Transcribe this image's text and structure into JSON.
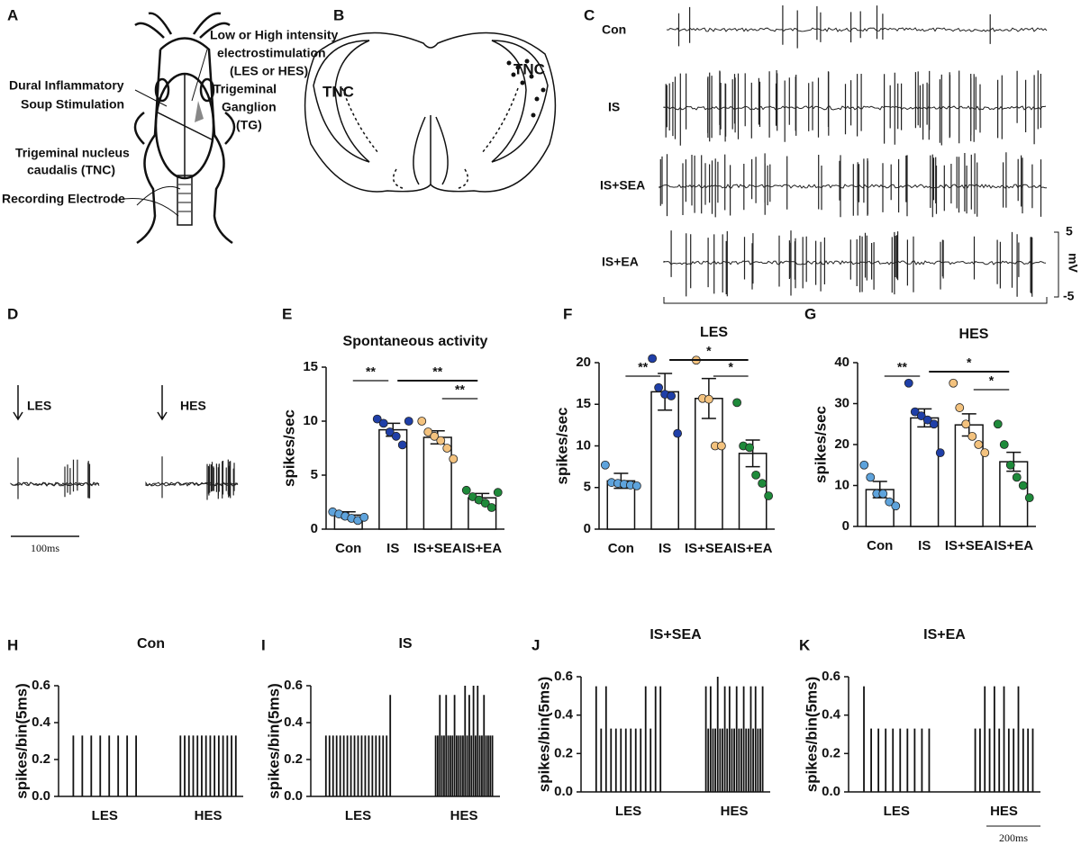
{
  "panels": {
    "A": {
      "letter": "A",
      "stimulation": [
        "Low or High intensity",
        "electrostimulation",
        "(LES or HES)"
      ],
      "dural": [
        "Dural Inflammatory",
        "Soup Stimulation"
      ],
      "ganglion": [
        "Trigeminal",
        "Ganglion",
        "(TG)"
      ],
      "tnc": [
        "Trigeminal nucleus",
        "caudalis (TNC)"
      ],
      "electrode": "Recording Electrode"
    },
    "B": {
      "letter": "B",
      "labels": [
        "TNC",
        "TNC"
      ]
    },
    "C": {
      "letter": "C",
      "traces": [
        "Con",
        "IS",
        "IS+SEA",
        "IS+EA"
      ],
      "scale": [
        "5",
        "mV",
        "-5"
      ]
    },
    "D": {
      "letter": "D",
      "labels": [
        "LES",
        "HES"
      ],
      "scale": "100ms"
    }
  },
  "chart_data": [
    {
      "type": "bar",
      "letter": "E",
      "title": "Spontaneous activity",
      "ylabel": "spikes/sec",
      "categories": [
        "Con",
        "IS",
        "IS+SEA",
        "IS+EA"
      ],
      "values": [
        1.3,
        9.2,
        8.5,
        2.9
      ],
      "errors": [
        0.3,
        0.6,
        0.6,
        0.4
      ],
      "colors": [
        "#5ea3dc",
        "#1f3fa8",
        "#f3c27e",
        "#1e8a3a"
      ],
      "points": [
        [
          1.6,
          1.4,
          1.2,
          1.0,
          0.8,
          1.1
        ],
        [
          10.2,
          9.8,
          9.0,
          8.6,
          7.8,
          10.0
        ],
        [
          10.0,
          9.0,
          8.6,
          8.2,
          7.5,
          6.5
        ],
        [
          3.6,
          3.0,
          2.7,
          2.4,
          2.0,
          3.4
        ]
      ],
      "ylim": [
        0,
        15
      ],
      "yticks": [
        0,
        5,
        10,
        15
      ],
      "significance": [
        {
          "between": [
            "Con",
            "IS"
          ],
          "label": "**"
        },
        {
          "between": [
            "IS",
            "IS+EA"
          ],
          "label": "**"
        },
        {
          "between": [
            "IS+SEA",
            "IS+EA"
          ],
          "label": "**"
        }
      ]
    },
    {
      "type": "bar",
      "letter": "F",
      "title": "LES",
      "ylabel": "spikes/sec",
      "categories": [
        "Con",
        "IS",
        "IS+SEA",
        "IS+EA"
      ],
      "values": [
        5.8,
        16.5,
        15.7,
        9.1
      ],
      "errors": [
        0.9,
        2.2,
        2.4,
        1.6
      ],
      "colors": [
        "#5ea3dc",
        "#1f3fa8",
        "#f3c27e",
        "#1e8a3a"
      ],
      "points": [
        [
          7.7,
          5.6,
          5.5,
          5.4,
          5.3,
          5.2
        ],
        [
          20.5,
          17,
          16.2,
          16,
          11.5
        ],
        [
          20.3,
          15.7,
          15.6,
          10,
          10
        ],
        [
          15.2,
          10,
          9.8,
          6.5,
          5.5,
          4
        ]
      ],
      "ylim": [
        0,
        20
      ],
      "yticks": [
        0,
        5,
        10,
        15,
        20
      ],
      "significance": [
        {
          "between": [
            "Con",
            "IS"
          ],
          "label": "**"
        },
        {
          "between": [
            "IS",
            "IS+EA"
          ],
          "label": "*"
        },
        {
          "between": [
            "IS+SEA",
            "IS+EA"
          ],
          "label": "*"
        }
      ]
    },
    {
      "type": "bar",
      "letter": "G",
      "title": "HES",
      "ylabel": "spikes/sec",
      "categories": [
        "Con",
        "IS",
        "IS+SEA",
        "IS+EA"
      ],
      "values": [
        9,
        26.5,
        24.8,
        15.8
      ],
      "errors": [
        2,
        2.2,
        2.7,
        2.3
      ],
      "colors": [
        "#5ea3dc",
        "#1f3fa8",
        "#f3c27e",
        "#1e8a3a"
      ],
      "points": [
        [
          15,
          12,
          8,
          8,
          6,
          5
        ],
        [
          35,
          28,
          27,
          26,
          25,
          18
        ],
        [
          35,
          29,
          25,
          22,
          20,
          18
        ],
        [
          25,
          20,
          15,
          12,
          10,
          7
        ]
      ],
      "ylim": [
        0,
        40
      ],
      "yticks": [
        0,
        10,
        20,
        30,
        40
      ],
      "significance": [
        {
          "between": [
            "Con",
            "IS"
          ],
          "label": "**"
        },
        {
          "between": [
            "IS",
            "IS+EA"
          ],
          "label": "*"
        },
        {
          "between": [
            "IS+SEA",
            "IS+EA"
          ],
          "label": "*"
        }
      ]
    },
    {
      "type": "spikes",
      "letter": "H",
      "title": "Con",
      "ylabel": "spikes/bin(5ms)",
      "ylim": [
        0,
        0.6
      ],
      "yticks": [
        {
          "value": 0,
          "label": "0.0"
        },
        0.2,
        0.4,
        0.6
      ],
      "groups": [
        {
          "label": "LES",
          "values": [
            0.33,
            0.33,
            0.33,
            0.33,
            0.33,
            0.33,
            0.33,
            0.33
          ]
        },
        {
          "label": "HES",
          "values": [
            0.33,
            0.33,
            0.33,
            0.33,
            0.33,
            0.33,
            0.33,
            0.33,
            0.33,
            0.33,
            0.33,
            0.33,
            0.33,
            0.33
          ]
        }
      ]
    },
    {
      "type": "spikes",
      "letter": "I",
      "title": "IS",
      "ylabel": "spikes/bin(5ms)",
      "ylim": [
        0,
        0.6
      ],
      "yticks": [
        {
          "value": 0,
          "label": "0.0"
        },
        0.2,
        0.4,
        0.6
      ],
      "groups": [
        {
          "label": "LES",
          "values": [
            0.33,
            0.33,
            0.33,
            0.33,
            0.33,
            0.33,
            0.33,
            0.33,
            0.33,
            0.33,
            0.33,
            0.33,
            0.33,
            0.33,
            0.33,
            0.33,
            0.33,
            0.33,
            0.55
          ]
        },
        {
          "label": "HES",
          "values": [
            0.33,
            0.33,
            0.55,
            0.33,
            0.33,
            0.55,
            0.33,
            0.33,
            0.33,
            0.55,
            0.33,
            0.33,
            0.33,
            0.33,
            0.6,
            0.33,
            0.55,
            0.33,
            0.6,
            0.33,
            0.6,
            0.33,
            0.33,
            0.55,
            0.33,
            0.33,
            0.33,
            0.33
          ]
        }
      ]
    },
    {
      "type": "spikes",
      "letter": "J",
      "title": "IS+SEA",
      "ylabel": "spikes/bin(5ms)",
      "ylim": [
        0,
        0.6
      ],
      "yticks": [
        {
          "value": 0,
          "label": "0.0"
        },
        0.2,
        0.4,
        0.6
      ],
      "groups": [
        {
          "label": "LES",
          "values": [
            0.55,
            0.33,
            0.55,
            0.33,
            0.33,
            0.33,
            0.33,
            0.33,
            0.33,
            0.33,
            0.55,
            0.33,
            0.55,
            0.55
          ]
        },
        {
          "label": "HES",
          "values": [
            0.55,
            0.33,
            0.55,
            0.33,
            0.33,
            0.6,
            0.33,
            0.33,
            0.55,
            0.33,
            0.55,
            0.33,
            0.33,
            0.55,
            0.33,
            0.33,
            0.55,
            0.33,
            0.33,
            0.55,
            0.33,
            0.55,
            0.33,
            0.33,
            0.55
          ]
        }
      ]
    },
    {
      "type": "spikes",
      "letter": "K",
      "title": "IS+EA",
      "ylabel": "spikes/bin(5ms)",
      "ylim": [
        0,
        0.6
      ],
      "yticks": [
        {
          "value": 0,
          "label": "0.0"
        },
        0.2,
        0.4,
        0.6
      ],
      "scale": "200ms",
      "groups": [
        {
          "label": "LES",
          "values": [
            0.55,
            0.33,
            0.33,
            0.33,
            0.33,
            0.33,
            0.33,
            0.33,
            0.33,
            0.33
          ]
        },
        {
          "label": "HES",
          "values": [
            0.33,
            0.33,
            0.55,
            0.33,
            0.55,
            0.33,
            0.55,
            0.33,
            0.33,
            0.55,
            0.33,
            0.33,
            0.33
          ]
        }
      ]
    }
  ]
}
